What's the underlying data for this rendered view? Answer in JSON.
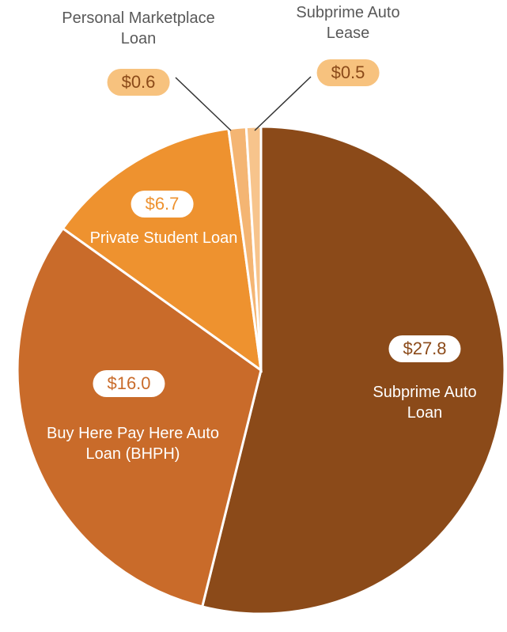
{
  "chart_data": {
    "type": "pie",
    "categories": [
      "Subprime Auto Loan",
      "Buy Here Pay Here Auto Loan (BHPH)",
      "Private Student Loan",
      "Personal Marketplace Loan",
      "Subprime Auto Lease"
    ],
    "values": [
      27.8,
      16.0,
      6.7,
      0.6,
      0.5
    ],
    "value_labels": [
      "$27.8",
      "$16.0",
      "$6.7",
      "$0.6",
      "$0.5"
    ],
    "colors": [
      "#8b4a19",
      "#c96b2a",
      "#ee922f",
      "#f4b573",
      "#f7c48c"
    ]
  }
}
